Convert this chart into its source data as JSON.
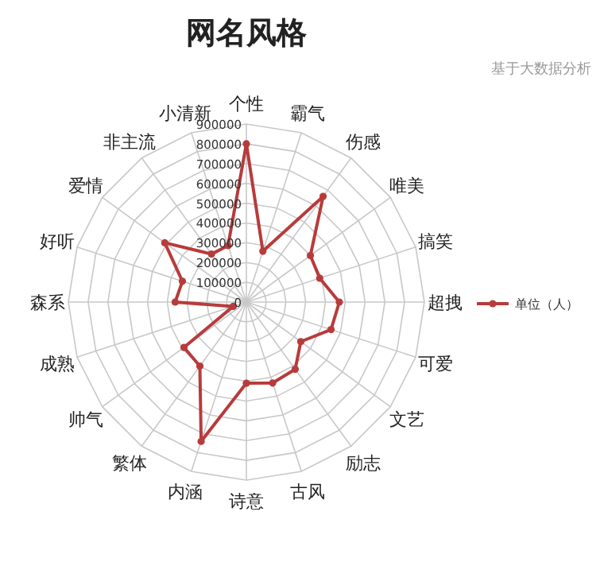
{
  "chart_data": {
    "type": "radar",
    "title": "网名风格",
    "subtitle": "基于大数据分析",
    "categories": [
      "个性",
      "霸气",
      "伤感",
      "唯美",
      "搞笑",
      "超拽",
      "可爱",
      "文艺",
      "励志",
      "古风",
      "诗意",
      "内涵",
      "繁体",
      "帅气",
      "成熟",
      "森系",
      "好听",
      "爱情",
      "非主流",
      "小清新"
    ],
    "series": [
      {
        "name": "单位（人）",
        "color": "#b83b3b",
        "values": [
          800000,
          270000,
          660000,
          400000,
          390000,
          470000,
          450000,
          340000,
          420000,
          430000,
          410000,
          740000,
          400000,
          390000,
          70000,
          360000,
          340000,
          510000,
          300000,
          300000
        ]
      }
    ],
    "ylim": [
      0,
      900000
    ],
    "yticks": [
      0,
      100000,
      200000,
      300000,
      400000,
      500000,
      600000,
      700000,
      800000,
      900000
    ],
    "grid": true,
    "legend": "right",
    "marker": "circle"
  }
}
